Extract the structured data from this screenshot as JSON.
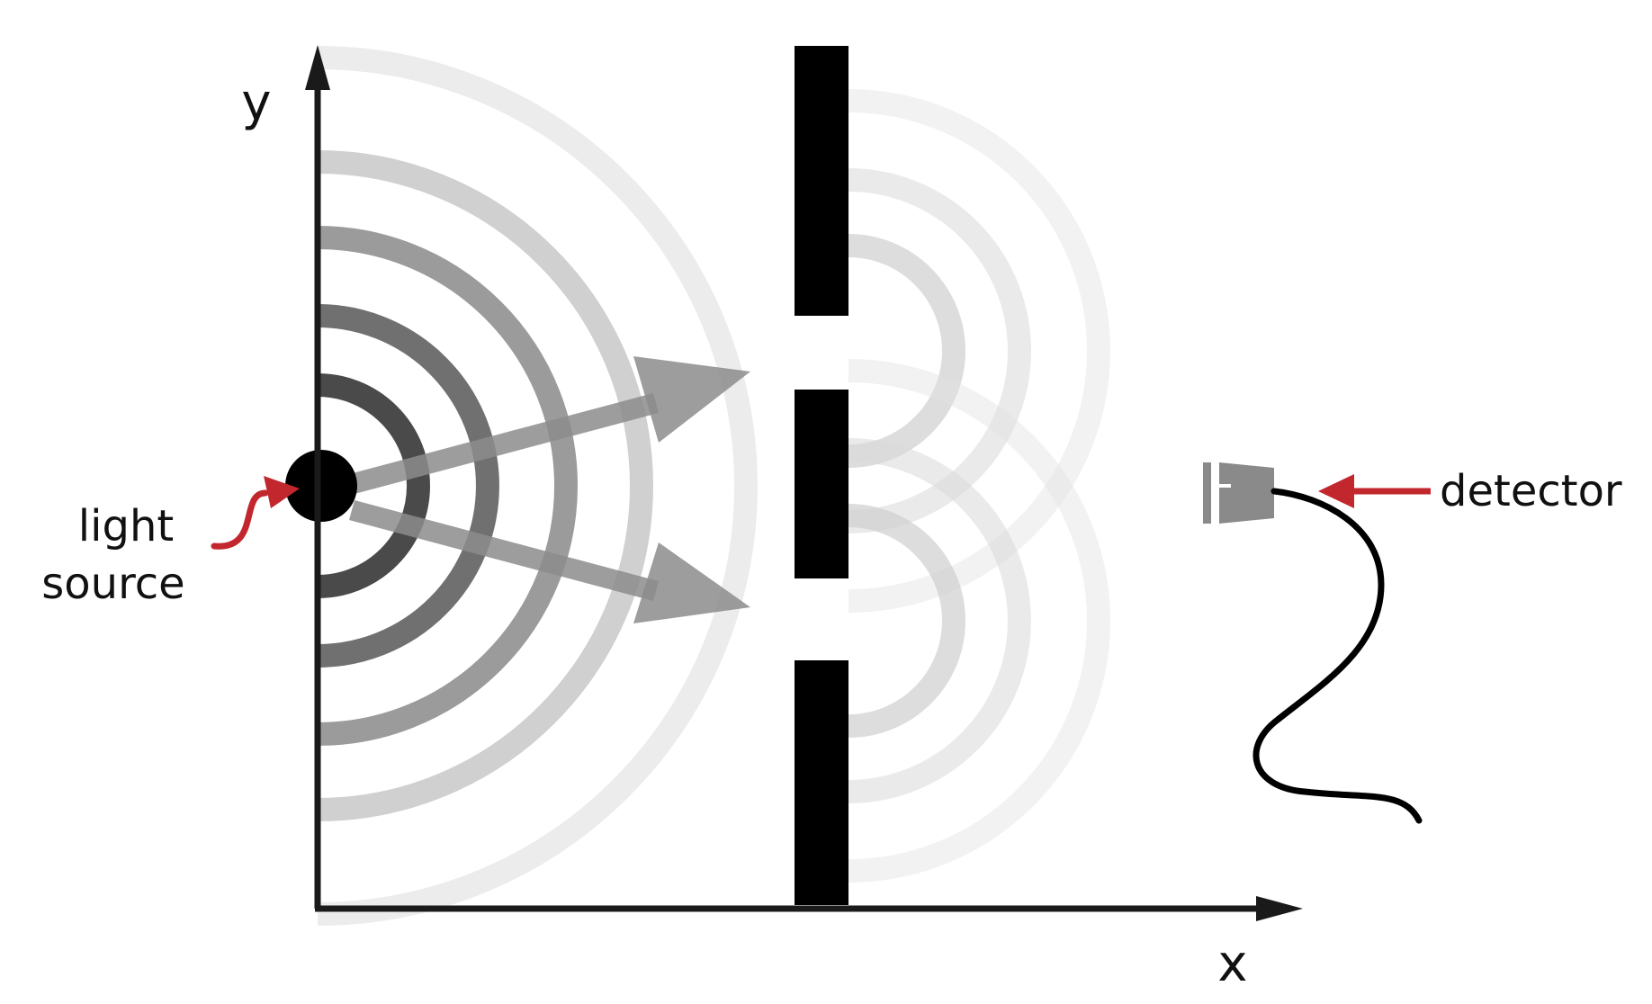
{
  "labels": {
    "y_axis": "y",
    "x_axis": "x",
    "source_line1": "light",
    "source_line2": "source",
    "detector": "detector"
  },
  "colors": {
    "axis": "#1a1a1a",
    "barrier": "#000000",
    "pointer_arrow": "#c1272d",
    "beam_arrow": "#8c8c8c",
    "detector_body": "#8a8a8a",
    "cable": "#000000"
  },
  "icons": {
    "source": "light-source-dot",
    "detector": "detector-icon"
  }
}
